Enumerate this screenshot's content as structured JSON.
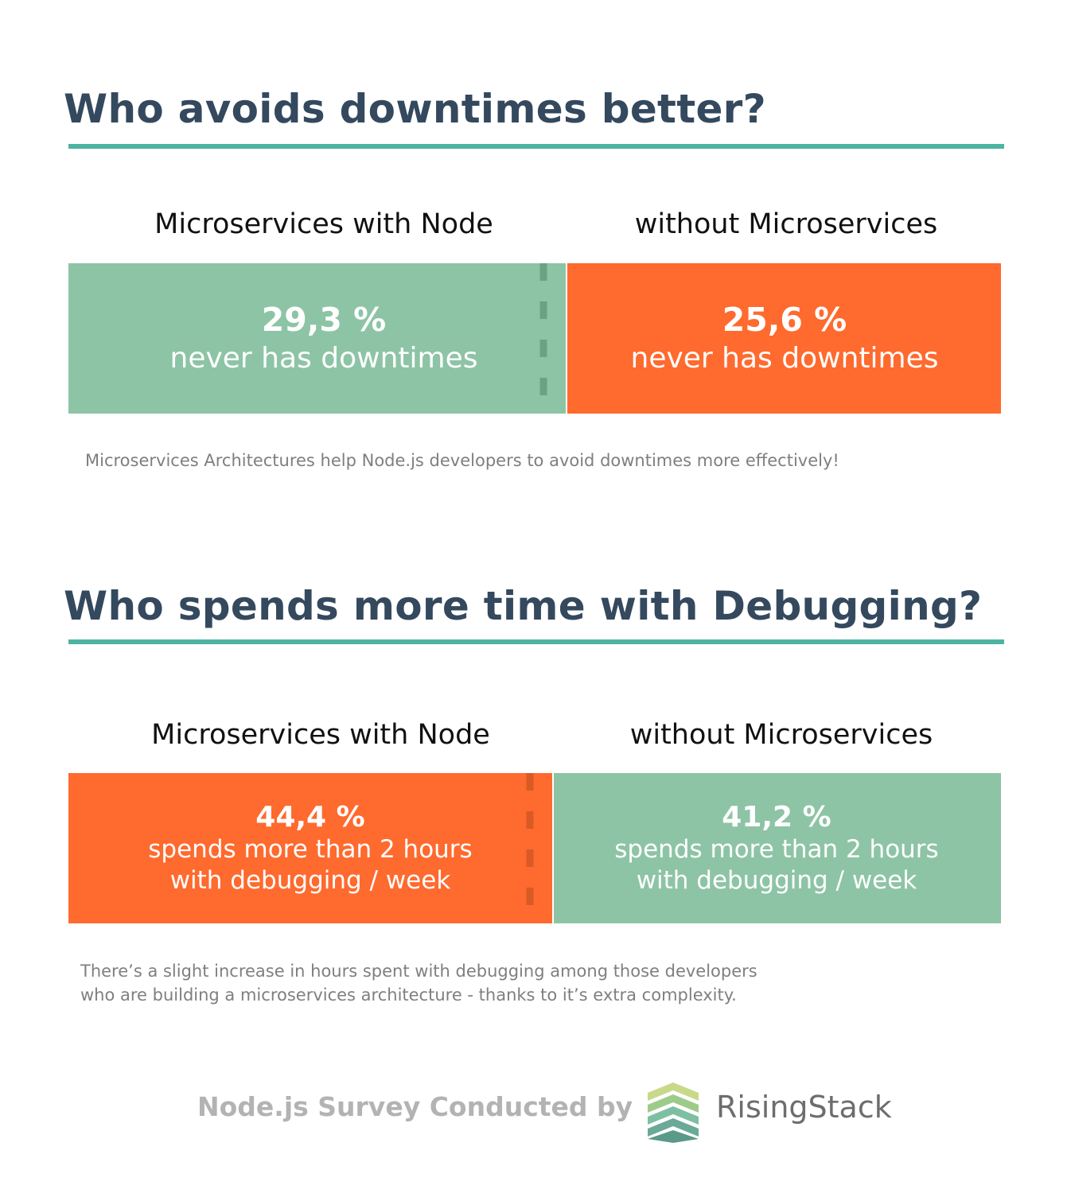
{
  "colors": {
    "title": "#34495e",
    "rule": "#4db3a2",
    "green": "#8dc4a5",
    "orange": "#ff6a2e",
    "divider": "#6aa283"
  },
  "chart_data": [
    {
      "type": "bar",
      "title": "Who avoids downtimes better?",
      "categories": [
        "Microservices with Node",
        "without Microservices"
      ],
      "values": [
        29.3,
        25.6
      ],
      "value_labels": [
        "29,3 %",
        "25,6 %"
      ],
      "description": "never has downtimes",
      "colors": [
        "#8dc4a5",
        "#ff6a2e"
      ],
      "note": "Microservices Architectures help Node.js developers to avoid downtimes more effectively!"
    },
    {
      "type": "bar",
      "title": "Who spends more time with Debugging?",
      "categories": [
        "Microservices with Node",
        "without Microservices"
      ],
      "values": [
        44.4,
        41.2
      ],
      "value_labels": [
        "44,4 %",
        "41,2 %"
      ],
      "description_lines": [
        "spends more than 2 hours",
        "with debugging / week"
      ],
      "colors": [
        "#ff6a2e",
        "#8dc4a5"
      ],
      "note_lines": [
        "There’s a slight increase in hours spent with debugging among those developers",
        "who are building a microservices architecture - thanks to it’s extra complexity."
      ]
    }
  ],
  "footer": {
    "text": "Node.js Survey Conducted by",
    "brand": "RisingStack",
    "logo_icon": "risingstack-logo-icon"
  }
}
